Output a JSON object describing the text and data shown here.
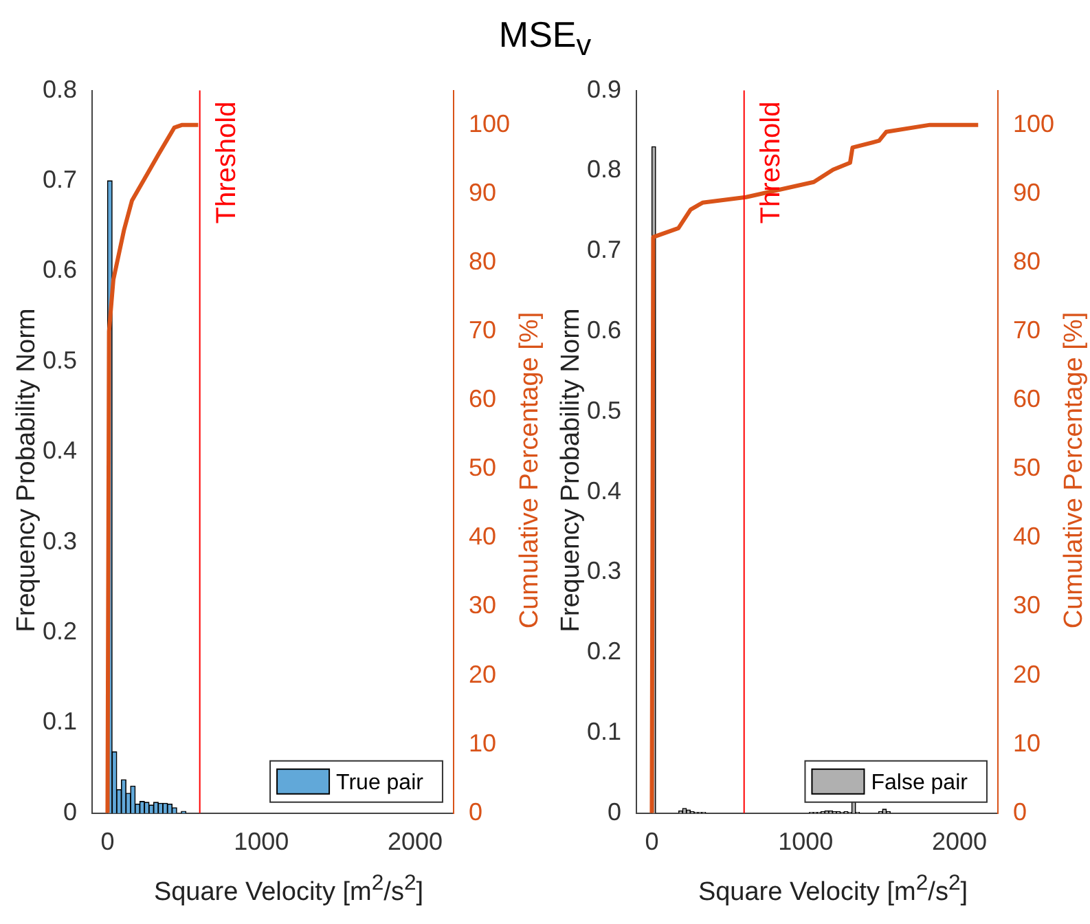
{
  "chart_data": [
    {
      "type": "histogram",
      "title": "MSE$_{v}$",
      "xlabel": "Square Velocity [m$^{2}$/s$^{2}$]",
      "ylabel": "Frequency Probability Norm",
      "y2label": "Cumulative Percentage [%]",
      "xlim": [
        -100,
        2250
      ],
      "xticks": [
        0,
        1000,
        2000
      ],
      "ylim": [
        0,
        0.8
      ],
      "yticks": [
        0,
        0.1,
        0.2,
        0.3,
        0.4,
        0.5,
        0.6,
        0.7,
        0.8
      ],
      "y2lim": [
        0,
        105
      ],
      "y2ticks": [
        0,
        10,
        20,
        30,
        40,
        50,
        60,
        70,
        80,
        90,
        100
      ],
      "legend": "bottom right",
      "grid": false,
      "series": [
        {
          "name": "True pair",
          "color": "#61a8d9",
          "bins": [
            0,
            30,
            60,
            90,
            120,
            150,
            180,
            210,
            240,
            270,
            300,
            330,
            360,
            390,
            420,
            450,
            480,
            510,
            540
          ],
          "values": [
            0.7,
            0.068,
            0.026,
            0.037,
            0.022,
            0.03,
            0.01,
            0.013,
            0.012,
            0.009,
            0.012,
            0.011,
            0.011,
            0.01,
            0.006,
            0,
            0.002,
            0
          ]
        },
        {
          "type": "line",
          "axis": "y2",
          "color": "#d95319",
          "x": [
            0,
            10,
            38,
            107,
            159,
            262,
            331,
            434,
            486,
            590
          ],
          "values": [
            0,
            70,
            77.5,
            84.7,
            89,
            93,
            95.7,
            99.6,
            100,
            100
          ]
        }
      ],
      "ref_lines": [
        {
          "axis": "x",
          "value": 600,
          "label": "Threshold",
          "color": "#ff0000"
        }
      ]
    },
    {
      "type": "histogram",
      "xlabel": "Square Velocity [m$^{2}$/s$^{2}$]",
      "ylabel": "Frequency Probability Norm",
      "y2label": "Cumulative Percentage [%]",
      "xlim": [
        -100,
        2250
      ],
      "xticks": [
        0,
        1000,
        2000
      ],
      "ylim": [
        0,
        0.9
      ],
      "yticks": [
        0,
        0.1,
        0.2,
        0.3,
        0.4,
        0.5,
        0.6,
        0.7,
        0.8,
        0.9
      ],
      "y2lim": [
        0,
        105
      ],
      "y2ticks": [
        0,
        10,
        20,
        30,
        40,
        50,
        60,
        70,
        80,
        90,
        100
      ],
      "legend": "bottom right",
      "grid": false,
      "series": [
        {
          "name": "False pair",
          "color": "#b0b0b0",
          "bins": [
            0,
            25,
            50,
            75,
            100,
            125,
            150,
            175,
            200,
            225,
            250,
            275,
            300,
            325,
            350,
            375,
            400,
            425,
            450,
            475,
            500,
            525,
            550,
            575,
            600,
            625,
            650,
            675,
            700,
            725,
            750,
            775,
            800,
            825,
            850,
            875,
            900,
            925,
            950,
            975,
            1000,
            1025,
            1050,
            1075,
            1100,
            1125,
            1150,
            1175,
            1200,
            1225,
            1250,
            1275,
            1300,
            1325,
            1350,
            1375,
            1400,
            1425,
            1450,
            1475,
            1500,
            1525,
            1550,
            1575,
            1600,
            1625
          ],
          "values": [
            0.83,
            0,
            0,
            0,
            0,
            0,
            0,
            0.003,
            0.006,
            0.004,
            0.002,
            0.001,
            0.001,
            0.001,
            0,
            0,
            0,
            0,
            0,
            0,
            0,
            0,
            0,
            0,
            0,
            0,
            0,
            0,
            0,
            0,
            0,
            0,
            0,
            0,
            0,
            0,
            0,
            0,
            0,
            0,
            0,
            0.001,
            0.001,
            0.001,
            0.002,
            0.003,
            0.003,
            0.002,
            0.002,
            0.001,
            0.002,
            0.001,
            0.02,
            0.001,
            0,
            0,
            0,
            0,
            0,
            0.002,
            0.005,
            0.002,
            0,
            0,
            0
          ]
        },
        {
          "type": "line",
          "axis": "y2",
          "color": "#d95319",
          "x": [
            0,
            9,
            173,
            252,
            330,
            613,
            1053,
            1179,
            1289,
            1305,
            1478,
            1525,
            1808,
            2122
          ],
          "values": [
            0,
            83.7,
            85,
            87.7,
            88.7,
            89.5,
            91.7,
            93.5,
            94.5,
            96.7,
            97.7,
            99,
            100,
            100
          ]
        }
      ],
      "ref_lines": [
        {
          "axis": "x",
          "value": 600,
          "label": "Threshold",
          "color": "#ff0000"
        }
      ]
    }
  ]
}
